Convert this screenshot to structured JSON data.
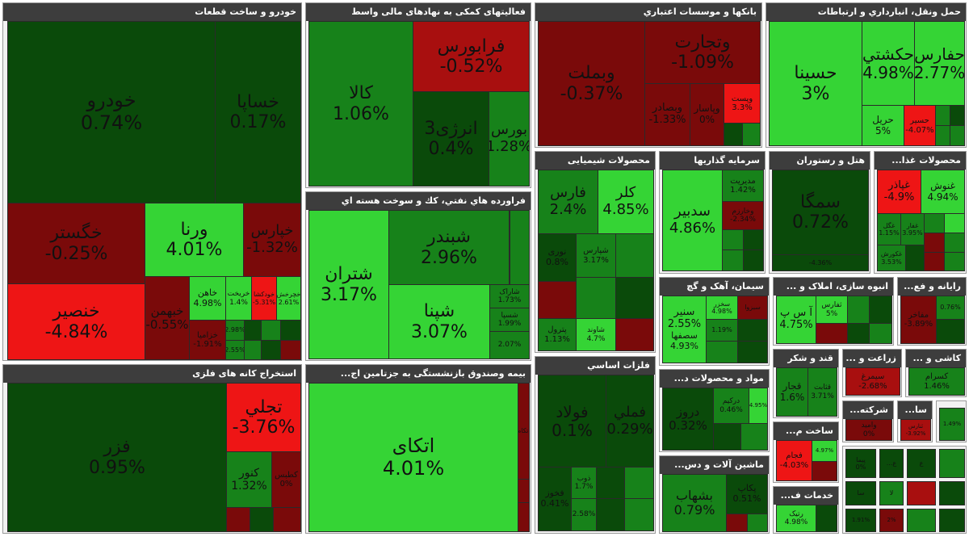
{
  "colors": {
    "strong_green": "#35d435",
    "mid_green": "#17821a",
    "dark_green": "#0a4a0a",
    "dark_red": "#7a0a0a",
    "mid_red": "#a80f0f",
    "strong_red": "#ee1515",
    "header_bg": "#3d3d3d"
  },
  "sectors": {
    "auto": {
      "title": "خودرو و ساخت قطعات",
      "tiles": [
        {
          "symbol": "خودرو",
          "change": "0.74%"
        },
        {
          "symbol": "خساپا",
          "change": "0.17%"
        },
        {
          "symbol": "خگستر",
          "change": "-0.25%"
        },
        {
          "symbol": "ورنا",
          "change": "4.01%"
        },
        {
          "symbol": "خپارس",
          "change": "-1.32%"
        },
        {
          "symbol": "خنصیر",
          "change": "-4.84%"
        },
        {
          "symbol": "خبهمن",
          "change": "-0.55%"
        },
        {
          "symbol": "خاهن",
          "change": "4.98%"
        },
        {
          "symbol": "خریخت",
          "change": "1.4%"
        },
        {
          "symbol": "خودکشا",
          "change": "-5.31%"
        },
        {
          "symbol": "خچرخش",
          "change": "2.61%"
        },
        {
          "symbol": "خزامیا",
          "change": "-1.91%"
        },
        {
          "symbol": "",
          "change": "2.98%"
        },
        {
          "symbol": "",
          "change": "2.55%"
        }
      ]
    },
    "mining": {
      "title": "استخراج کانه های فلزی",
      "tiles": [
        {
          "symbol": "فزر",
          "change": "0.95%"
        },
        {
          "symbol": "تجلي",
          "change": "-3.76%"
        },
        {
          "symbol": "کنور",
          "change": "1.32%"
        },
        {
          "symbol": "کطبس",
          "change": "0%"
        }
      ]
    },
    "finance_aux": {
      "title": "فعالیتهای کمکی به نهادهای مالی واسط",
      "tiles": [
        {
          "symbol": "کالا",
          "change": "1.06%"
        },
        {
          "symbol": "فرابورس",
          "change": "-0.52%"
        },
        {
          "symbol": "انرژی3",
          "change": "0.4%"
        },
        {
          "symbol": "بورس",
          "change": "1.28%"
        }
      ]
    },
    "oil": {
      "title": "فراورده هاي نفتي، كك و سوخت هسته اي",
      "tiles": [
        {
          "symbol": "شتران",
          "change": "3.17%"
        },
        {
          "symbol": "شبندر",
          "change": "2.96%"
        },
        {
          "symbol": "شپنا",
          "change": "3.07%"
        },
        {
          "symbol": "شاراک",
          "change": "1.73%"
        },
        {
          "symbol": "شسپا",
          "change": "1.99%"
        },
        {
          "symbol": "",
          "change": "2.07%"
        }
      ]
    },
    "insurance": {
      "title": "بیمه وصندوق بازنشستگی به جزتامین اج...",
      "tiles": [
        {
          "symbol": "اتکای",
          "change": "4.01%"
        },
        {
          "symbol": "اتکام",
          "change": ""
        }
      ]
    },
    "banks": {
      "title": "بانكها و موسسات اعتباري",
      "tiles": [
        {
          "symbol": "وبملت",
          "change": "-0.37%"
        },
        {
          "symbol": "وتجارت",
          "change": "-1.09%"
        },
        {
          "symbol": "وبصادر",
          "change": "-1.33%"
        },
        {
          "symbol": "وپاسار",
          "change": "0%"
        },
        {
          "symbol": "وپست",
          "change": "3.3%"
        }
      ]
    },
    "chemicals": {
      "title": "محصولات شیمیایی",
      "tiles": [
        {
          "symbol": "فارس",
          "change": "2.4%"
        },
        {
          "symbol": "کلر",
          "change": "4.85%"
        },
        {
          "symbol": "نوری",
          "change": "0.8%"
        },
        {
          "symbol": "شپارس",
          "change": "3.17%"
        },
        {
          "symbol": "پترول",
          "change": "1.13%"
        },
        {
          "symbol": "شاوند",
          "change": "4.7%"
        }
      ]
    },
    "metals": {
      "title": "فلزات اساسي",
      "tiles": [
        {
          "symbol": "فولاد",
          "change": "0.1%"
        },
        {
          "symbol": "فملي",
          "change": "0.29%"
        },
        {
          "symbol": "فخوز",
          "change": "0.41%"
        },
        {
          "symbol": "ذوب",
          "change": "1.7%"
        },
        {
          "symbol": "",
          "change": "2.58%"
        }
      ]
    },
    "transport": {
      "title": "حمل ونقل، انبارداري و ارتباطات",
      "tiles": [
        {
          "symbol": "حسينا",
          "change": "3%"
        },
        {
          "symbol": "حکشتي",
          "change": "4.98%"
        },
        {
          "symbol": "حفارس",
          "change": "2.77%"
        },
        {
          "symbol": "حریل",
          "change": "5%"
        },
        {
          "symbol": "حسیر",
          "change": "-4.07%"
        }
      ]
    },
    "investment": {
      "title": "سرمايه گذاريها",
      "tiles": [
        {
          "symbol": "سدبير",
          "change": "4.86%"
        },
        {
          "symbol": "مدیریت",
          "change": "1.42%"
        },
        {
          "symbol": "وخارزم",
          "change": "-2.34%"
        }
      ]
    },
    "hotel": {
      "title": "هتل و رستوران",
      "tiles": [
        {
          "symbol": "سمگا",
          "change": "0.72%"
        },
        {
          "symbol": "",
          "change": "-4.36%"
        }
      ]
    },
    "food": {
      "title": "محصولات غذا...",
      "tiles": [
        {
          "symbol": "غپاذر",
          "change": "-4.9%"
        },
        {
          "symbol": "غنوش",
          "change": "4.94%"
        },
        {
          "symbol": "غگل",
          "change": "1.15%"
        },
        {
          "symbol": "غفار",
          "change": "3.95%"
        },
        {
          "symbol": "غکورش",
          "change": "3.53%"
        }
      ]
    },
    "cement": {
      "title": "سیمان، آهک و گچ",
      "tiles": [
        {
          "symbol": "سبزوا",
          "change": "4.98%"
        },
        {
          "symbol": "سخزر",
          "change": "4.98%"
        },
        {
          "symbol": "سنیر",
          "change": "2.55%"
        },
        {
          "symbol": "سصفها",
          "change": "4.93%"
        },
        {
          "symbol": "",
          "change": "1.19%"
        }
      ]
    },
    "construction": {
      "title": "انبوه سازی، املاک و ...",
      "tiles": [
        {
          "symbol": "آ س پ",
          "change": "4.75%"
        },
        {
          "symbol": "ثفارس",
          "change": "5%"
        }
      ]
    },
    "computer": {
      "title": "رایانه و فع...",
      "tiles": [
        {
          "symbol": "مفاخر",
          "change": "-3.89%"
        },
        {
          "symbol": "",
          "change": "0.76%"
        }
      ]
    },
    "sugar": {
      "title": "قند و شکر",
      "tiles": [
        {
          "symbol": "قجار",
          "change": "1.6%"
        },
        {
          "symbol": "قثابت",
          "change": "3.71%"
        }
      ]
    },
    "agriculture": {
      "title": "زراعت و ...",
      "tiles": [
        {
          "symbol": "سیمرغ",
          "change": "-2.68%"
        }
      ]
    },
    "tile": {
      "title": "کاشی و ...",
      "tiles": [
        {
          "symbol": "کسرام",
          "change": "1.46%"
        }
      ]
    },
    "materials": {
      "title": "مواد و محصولات د...",
      "tiles": [
        {
          "symbol": "دروز",
          "change": "0.32%"
        },
        {
          "symbol": "درکیم",
          "change": "0.46%"
        },
        {
          "symbol": "",
          "change": "4.95%"
        }
      ]
    },
    "build": {
      "title": "ساخت م...",
      "tiles": [
        {
          "symbol": "فجام",
          "change": "-4.03%"
        },
        {
          "symbol": "",
          "change": "4.97%"
        }
      ]
    },
    "holding": {
      "title": "شرکته...",
      "tiles": [
        {
          "symbol": "وامید",
          "change": "0%"
        }
      ]
    },
    "sa": {
      "title": "سا...",
      "tiles": [
        {
          "symbol": "ثنارس",
          "change": "-3.92%"
        }
      ]
    },
    "misc_a": {
      "title": "",
      "tiles": [
        {
          "symbol": "",
          "change": "1.49%"
        }
      ]
    },
    "machinery": {
      "title": "ماشین آلات و دس...",
      "tiles": [
        {
          "symbol": "بشهاب",
          "change": "0.79%"
        },
        {
          "symbol": "پکاپ",
          "change": "0.51%"
        }
      ]
    },
    "services": {
      "title": "خدمات ف...",
      "tiles": [
        {
          "symbol": "رتیک",
          "change": "4.98%"
        }
      ]
    },
    "small": {
      "tiles": [
        {
          "label": "پیما",
          "change": "0%"
        },
        {
          "label": "ع...",
          "change": ""
        },
        {
          "label": "ع",
          "change": ""
        },
        {
          "label": "سا",
          "change": ""
        },
        {
          "label": "لا",
          "change": ""
        },
        {
          "label": "",
          "change": "1.91%"
        },
        {
          "label": "",
          "change": "2%"
        }
      ]
    }
  }
}
